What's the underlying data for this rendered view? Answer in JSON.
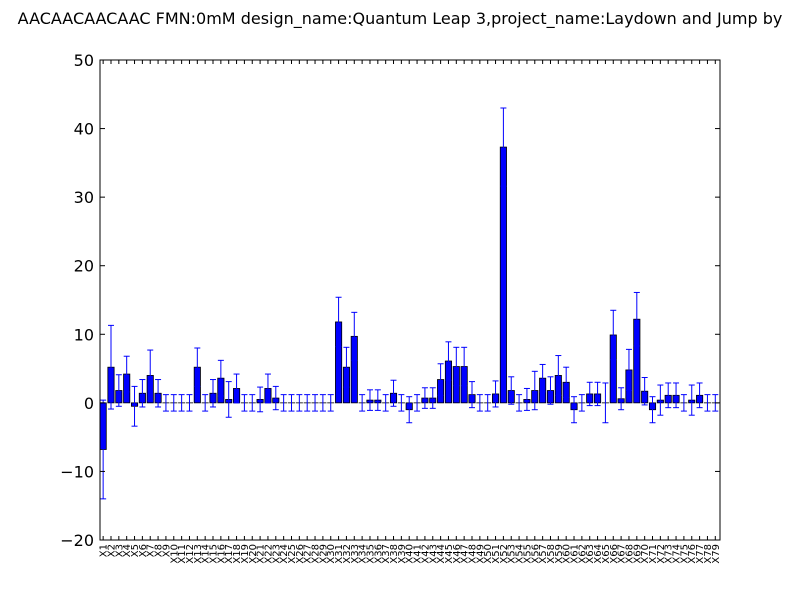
{
  "chart_data": {
    "type": "bar",
    "title": "AACAACAACAAC  FMN:0mM  design_name:Quantum Leap 3,project_name:Laydown and Jump by",
    "xlabel": "",
    "ylabel": "",
    "ylim": [
      -20,
      50
    ],
    "yticks": [
      -20,
      -10,
      0,
      10,
      20,
      30,
      40,
      50
    ],
    "grid": false,
    "colors": {
      "bar": "#0000ff",
      "errorbar": "#0000ff"
    },
    "categories": [
      "X1",
      "X2",
      "X3",
      "X4",
      "X5",
      "X6",
      "X7",
      "X8",
      "X9",
      "X10",
      "X11",
      "X12",
      "X13",
      "X14",
      "X15",
      "X16",
      "X17",
      "X18",
      "X19",
      "X20",
      "X21",
      "X22",
      "X23",
      "X24",
      "X25",
      "X26",
      "X27",
      "X28",
      "X29",
      "X30",
      "X31",
      "X32",
      "X33",
      "X34",
      "X35",
      "X36",
      "X37",
      "X38",
      "X39",
      "X40",
      "X41",
      "X42",
      "X43",
      "X44",
      "X45",
      "X46",
      "X47",
      "X48",
      "X49",
      "X50",
      "X51",
      "X52",
      "X53",
      "X54",
      "X55",
      "X56",
      "X57",
      "X58",
      "X59",
      "X60",
      "X61",
      "X62",
      "X63",
      "X64",
      "X65",
      "X66",
      "X67",
      "X68",
      "X69",
      "X70",
      "X71",
      "X72",
      "X73",
      "X74",
      "X75",
      "X76",
      "X77",
      "X78",
      "X79"
    ],
    "values": [
      -6.8,
      5.2,
      1.8,
      4.2,
      -0.5,
      1.4,
      4.0,
      1.4,
      0,
      0,
      0,
      0,
      5.2,
      0,
      1.4,
      3.6,
      0.5,
      2.1,
      0,
      0,
      0.5,
      2.1,
      0.7,
      0,
      0,
      0,
      0,
      0,
      0,
      0,
      11.8,
      5.2,
      9.7,
      0,
      0.4,
      0.4,
      0,
      1.4,
      0,
      -1.0,
      0,
      0.7,
      0.7,
      3.4,
      6.1,
      5.3,
      5.3,
      1.2,
      0,
      0,
      1.3,
      37.3,
      1.8,
      0,
      0.5,
      1.8,
      3.6,
      1.8,
      4.0,
      3.0,
      -1.0,
      0,
      1.3,
      1.3,
      0,
      9.9,
      0.6,
      4.8,
      12.2,
      1.7,
      -1.0,
      0.4,
      1.1,
      1.1,
      0,
      0.4,
      1.1,
      0,
      0
    ],
    "errors": [
      7.2,
      6.1,
      2.3,
      2.6,
      2.9,
      2.0,
      3.7,
      2.0,
      1.2,
      1.2,
      1.2,
      1.2,
      2.8,
      1.2,
      2.0,
      2.6,
      2.6,
      2.1,
      1.2,
      1.2,
      1.8,
      2.1,
      1.7,
      1.2,
      1.2,
      1.2,
      1.2,
      1.2,
      1.2,
      1.2,
      3.6,
      2.9,
      3.5,
      1.2,
      1.5,
      1.5,
      1.2,
      1.9,
      1.2,
      1.9,
      1.2,
      1.5,
      1.5,
      2.3,
      2.8,
      2.8,
      2.8,
      1.9,
      1.2,
      1.2,
      1.9,
      5.7,
      2.0,
      1.2,
      1.6,
      2.8,
      2.0,
      2.0,
      2.9,
      2.2,
      1.9,
      1.2,
      1.7,
      1.7,
      2.9,
      3.6,
      1.6,
      3.0,
      3.9,
      2.0,
      1.9,
      2.2,
      1.8,
      1.8,
      1.2,
      2.2,
      1.8,
      1.2,
      1.2
    ]
  }
}
